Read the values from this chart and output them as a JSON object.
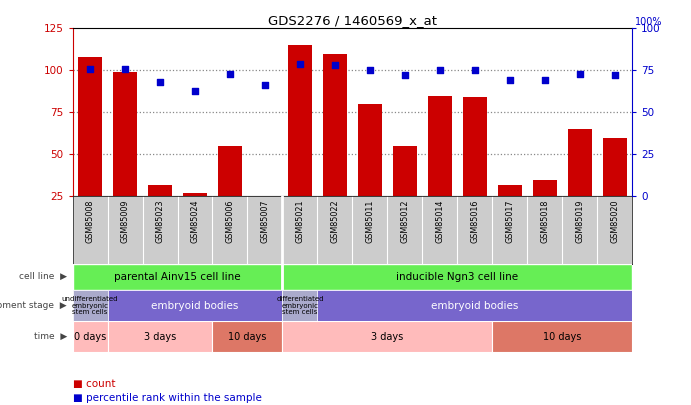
{
  "title": "GDS2276 / 1460569_x_at",
  "samples": [
    "GSM85008",
    "GSM85009",
    "GSM85023",
    "GSM85024",
    "GSM85006",
    "GSM85007",
    "GSM85021",
    "GSM85022",
    "GSM85011",
    "GSM85012",
    "GSM85014",
    "GSM85016",
    "GSM85017",
    "GSM85018",
    "GSM85019",
    "GSM85020"
  ],
  "counts": [
    108,
    99,
    32,
    27,
    55,
    25,
    115,
    110,
    80,
    55,
    85,
    84,
    32,
    35,
    65,
    60
  ],
  "percentile": [
    76,
    76,
    68,
    63,
    73,
    66,
    79,
    78,
    75,
    72,
    75,
    75,
    69,
    69,
    73,
    72
  ],
  "ylim_left": [
    25,
    125
  ],
  "ylim_right": [
    0,
    100
  ],
  "yticks_left": [
    25,
    50,
    75,
    100,
    125
  ],
  "yticks_right": [
    0,
    25,
    50,
    75,
    100
  ],
  "bar_color": "#cc0000",
  "scatter_color": "#0000cc",
  "grid_color": "#888888",
  "cell_line_bg": "#66ee55",
  "dev_undiff_bg": "#aaaacc",
  "dev_embryoid_bg": "#7766cc",
  "time_light_bg": "#ffbbbb",
  "time_dark_bg": "#dd7766",
  "right_axis_color": "#0000cc",
  "left_axis_color": "#cc0000",
  "label_row_bg": "#dddddd",
  "xticklabel_bg": "#cccccc",
  "parental_n": 6,
  "inducible_n": 10,
  "undiff_parental_n": 1,
  "embryoid_parental_n": 5,
  "undiff_inducible_n": 1,
  "embryoid_inducible_n": 9,
  "time_0_n": 1,
  "time_3a_n": 3,
  "time_10a_n": 2,
  "time_3b_n": 6,
  "time_10b_n": 4
}
